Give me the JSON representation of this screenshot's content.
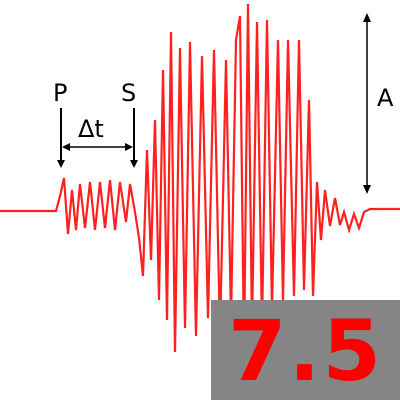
{
  "seismogram": {
    "trace_color": "#ff2020",
    "ink_color": "#000000",
    "p_label": "P",
    "s_label": "S",
    "delta_label": "Δt",
    "amplitude_label": "A"
  },
  "magnitude": {
    "value": "7.5",
    "text_color": "#ff0000",
    "box_color": "#858585"
  }
}
